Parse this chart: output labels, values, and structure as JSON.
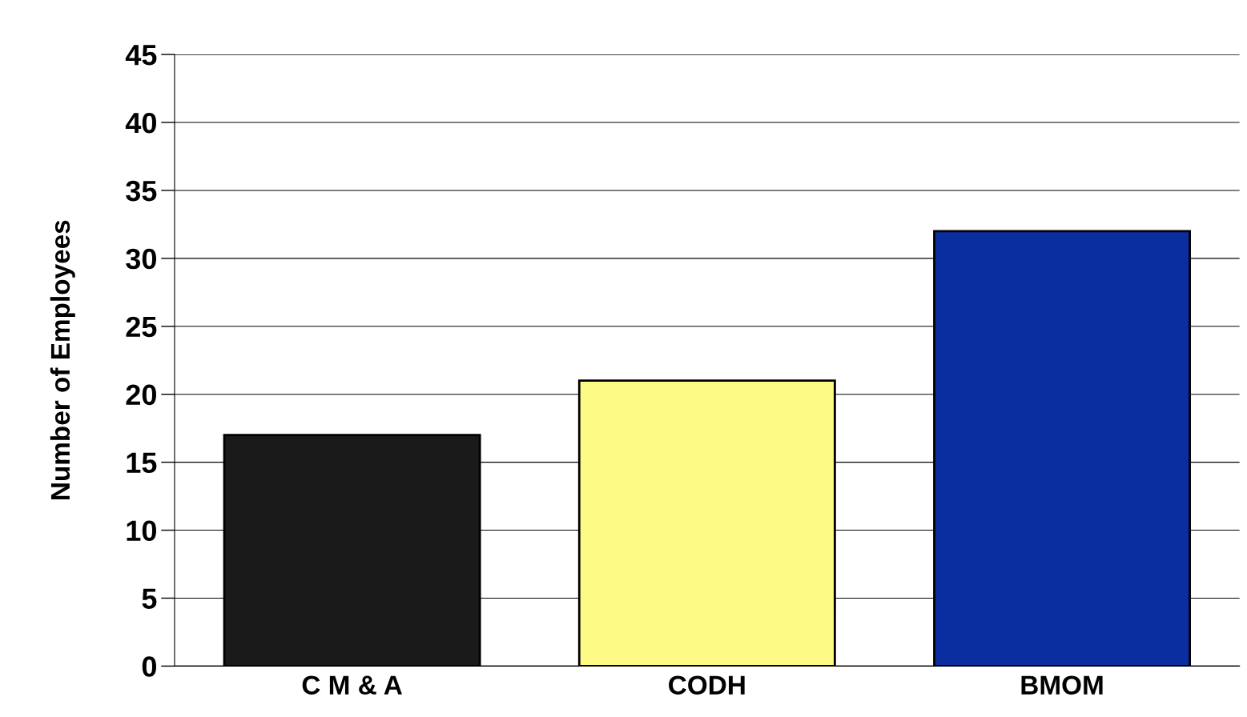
{
  "chart_data": {
    "type": "bar",
    "ylabel": "Number of Employees",
    "categories": [
      "C M & A",
      "CODH",
      "BMOM"
    ],
    "values": [
      17,
      21,
      32
    ],
    "colors": [
      "#1a1a1a",
      "#fdfb86",
      "#0a2ea0"
    ],
    "ylim": [
      0,
      45
    ],
    "yticks": [
      0,
      5,
      10,
      15,
      20,
      25,
      30,
      35,
      40,
      45
    ],
    "grid": "y",
    "legend": false
  }
}
